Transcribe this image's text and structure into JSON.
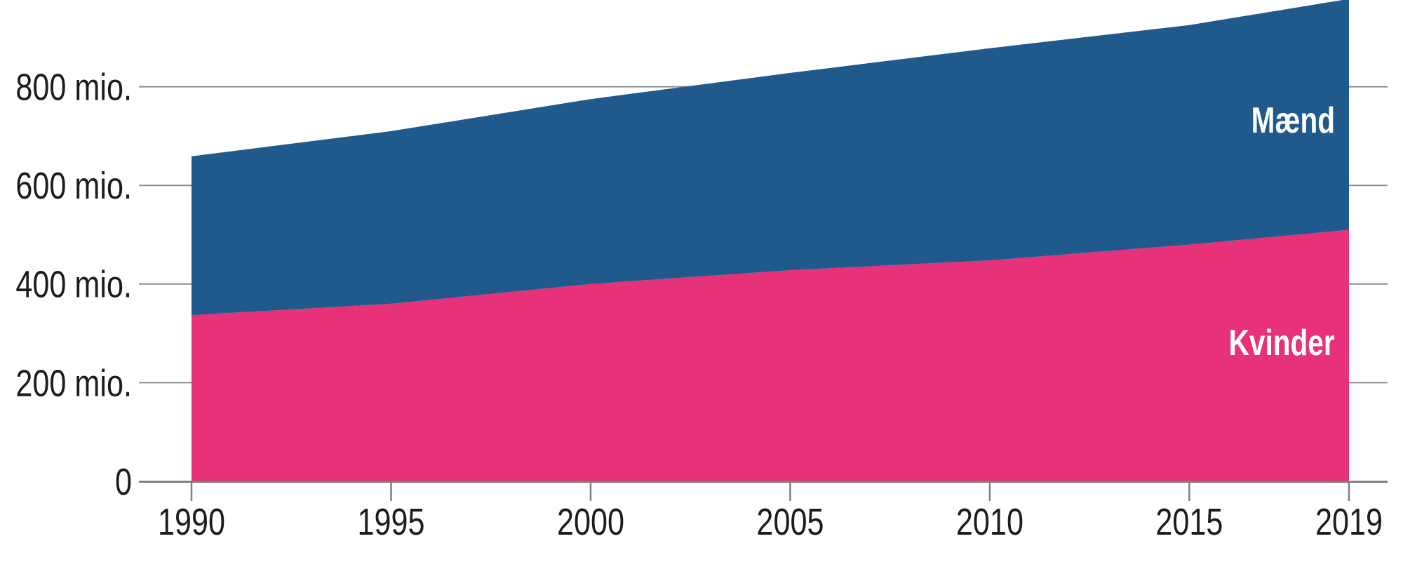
{
  "chart_data": {
    "type": "area",
    "stacked": true,
    "x": [
      1990,
      1995,
      2000,
      2005,
      2010,
      2015,
      2019
    ],
    "x_tick_labels": [
      "1990",
      "1995",
      "2000",
      "2005",
      "2010",
      "2015",
      "2019"
    ],
    "series": [
      {
        "name": "Kvinder",
        "color": "#e73178",
        "values": [
          337,
          360,
          400,
          428,
          448,
          480,
          510
        ]
      },
      {
        "name": "Mænd",
        "color": "#20598c",
        "values": [
          322,
          350,
          375,
          400,
          430,
          445,
          468
        ]
      }
    ],
    "totals": [
      659,
      710,
      775,
      828,
      878,
      925,
      978
    ],
    "unit": "mio.",
    "y_ticks": [
      {
        "value": 0,
        "label": "0"
      },
      {
        "value": 200,
        "label": "200 mio."
      },
      {
        "value": 400,
        "label": "400 mio."
      },
      {
        "value": 600,
        "label": "600 mio."
      },
      {
        "value": 800,
        "label": "800 mio."
      }
    ],
    "ylim": [
      0,
      980
    ],
    "xlim": [
      1990,
      2019
    ],
    "grid": "horizontal",
    "legend_position": "inside-right",
    "colors": {
      "kvinder": "#e73178",
      "maend": "#20598c",
      "grid": "#8c8c8c",
      "axis": "#7f7f7f",
      "axis_text": "#1c1c1c",
      "series_label_text": "#ffffff"
    }
  }
}
